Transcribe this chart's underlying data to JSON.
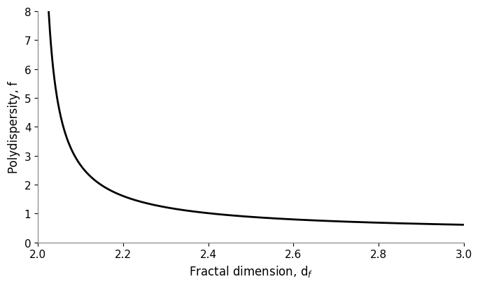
{
  "x_start": 2.001,
  "x_end": 3.0,
  "xlim": [
    2.0,
    3.0
  ],
  "ylim": [
    0,
    8
  ],
  "xlabel": "Fractal dimension, d$_f$",
  "ylabel": "Polydispersity, f",
  "xticks": [
    2.0,
    2.2,
    2.4,
    2.6,
    2.8,
    3.0
  ],
  "yticks": [
    0,
    1,
    2,
    3,
    4,
    5,
    6,
    7,
    8
  ],
  "line_color": "#000000",
  "line_width": 2.0,
  "background_color": "#ffffff",
  "figure_background": "#ffffff",
  "spine_color": "#808080",
  "tick_label_fontsize": 11,
  "axis_label_fontsize": 12,
  "formula_A": 0.48,
  "formula_n": 0.85
}
